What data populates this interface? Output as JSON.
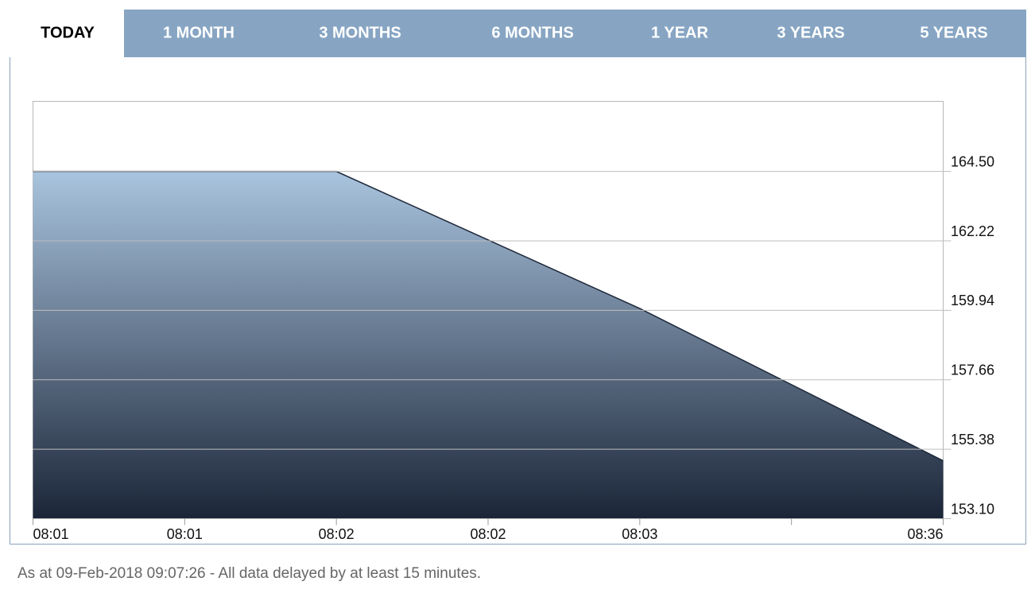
{
  "tabs": [
    "TODAY",
    "1 MONTH",
    "3 MONTHS",
    "6 MONTHS",
    "1 YEAR",
    "3 YEARS",
    "5 YEARS"
  ],
  "active_tab": 0,
  "chart_data": {
    "type": "area",
    "categories": [
      "08:01",
      "08:01",
      "08:02",
      "08:02",
      "08:03",
      null,
      "08:36"
    ],
    "values": [
      164.5,
      164.5,
      164.5,
      162.25,
      160.0,
      157.5,
      155.0
    ],
    "color": "#1c2638",
    "fill_gradient": [
      "#a9c4de",
      "#1b2538"
    ],
    "ylim": [
      153.1,
      166.8
    ],
    "yticks": [
      {
        "value": 153.1,
        "label": "153.10"
      },
      {
        "value": 155.38,
        "label": "155.38"
      },
      {
        "value": 157.66,
        "label": "157.66"
      },
      {
        "value": 159.94,
        "label": "159.94"
      },
      {
        "value": 162.22,
        "label": "162.22"
      },
      {
        "value": 164.5,
        "label": "164.50"
      }
    ],
    "grid": true
  },
  "footer": "As at 09-Feb-2018 09:07:26 -  All data delayed by at least 15 minutes."
}
